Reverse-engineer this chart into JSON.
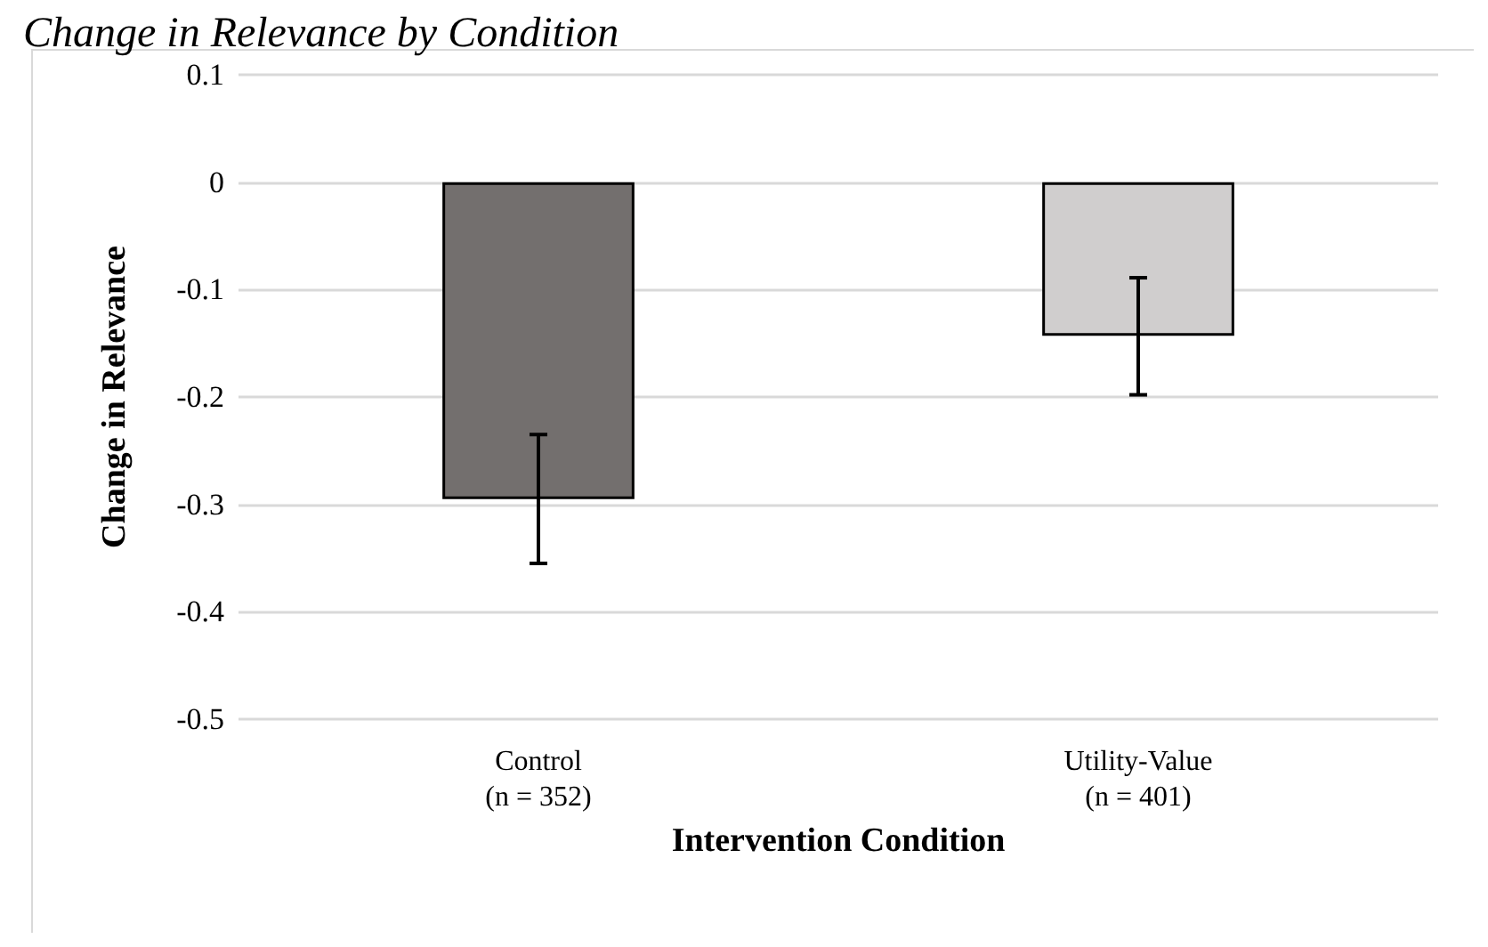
{
  "chart_data": {
    "type": "bar",
    "title": "Change in Relevance by Condition",
    "xlabel": "Intervention Condition",
    "ylabel": "Change in Relevance",
    "categories": [
      "Control\n(n = 352)",
      "Utility-Value\n(n = 401)"
    ],
    "values": [
      -0.295,
      -0.143
    ],
    "colors": [
      "#736f6e",
      "#d0cece"
    ],
    "errors": [
      [
        -0.355,
        -0.235
      ],
      [
        -0.198,
        -0.089
      ]
    ],
    "ylim": [
      -0.5,
      0.1
    ],
    "yticks": [
      -0.5,
      -0.4,
      -0.3,
      -0.2,
      -0.1,
      0,
      0.1
    ],
    "grid": "y"
  }
}
